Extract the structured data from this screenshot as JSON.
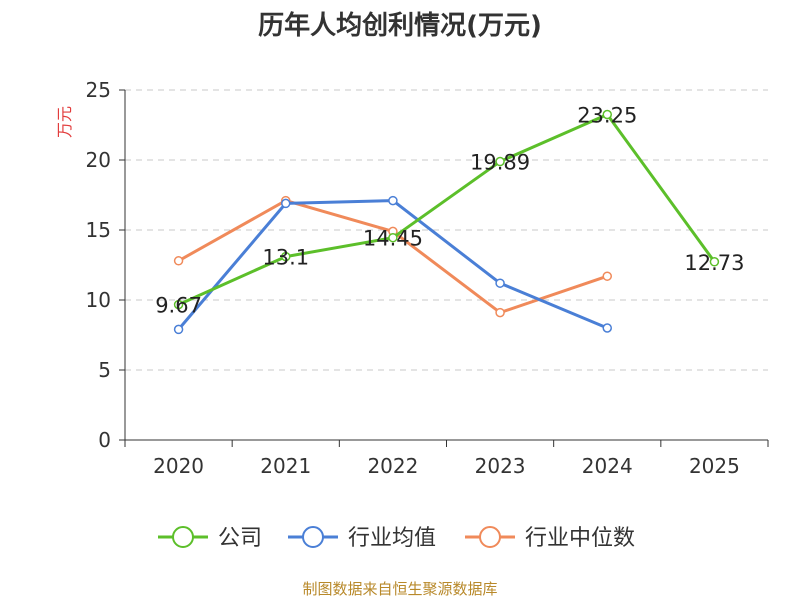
{
  "chart_data": {
    "type": "line",
    "title": "历年人均创利情况(万元)",
    "ylabel": "万元",
    "xlabel": "",
    "categories": [
      "2020",
      "2021",
      "2022",
      "2023",
      "2024",
      "2025"
    ],
    "ylim": [
      0,
      25
    ],
    "yticks": [
      0,
      5,
      10,
      15,
      20,
      25
    ],
    "grid": true,
    "legend_position": "bottom",
    "series": [
      {
        "name": "公司",
        "color": "#5cbf2a",
        "values": [
          9.67,
          13.1,
          14.45,
          19.89,
          23.25,
          12.73
        ],
        "labels": [
          "9.67",
          "13.1",
          "14.45",
          "19.89",
          "23.25",
          "12.73"
        ]
      },
      {
        "name": "行业均值",
        "color": "#4a7fd6",
        "values": [
          7.9,
          16.9,
          17.1,
          11.2,
          8.0,
          null
        ]
      },
      {
        "name": "行业中位数",
        "color": "#f08a5a",
        "values": [
          12.8,
          17.1,
          14.9,
          9.1,
          11.7,
          null
        ]
      }
    ]
  },
  "source": "制图数据来自恒生聚源数据库"
}
